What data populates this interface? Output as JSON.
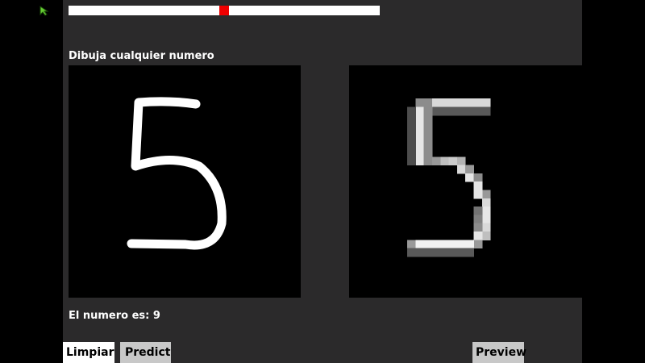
{
  "slider": {
    "value_fraction": 0.5
  },
  "instruction_label": "Dibuja cualquier numero",
  "result_label": "El numero es: 9",
  "buttons": {
    "clear_label": "Limpiar",
    "predict_label": "Predict",
    "preview_label": "Preview"
  },
  "colors": {
    "panel": "#2b2a2b",
    "slider_track": "#ffffff",
    "slider_handle": "#ee0000",
    "button_active": "#ffffff",
    "button_idle": "#c8c8c8",
    "cursor": "#66cc33"
  }
}
